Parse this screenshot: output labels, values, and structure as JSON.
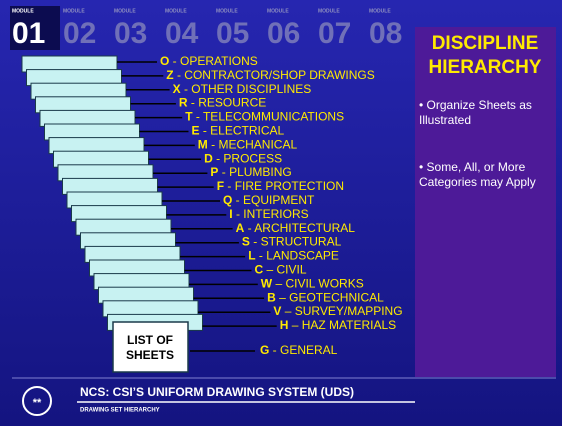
{
  "header": {
    "modules": [
      {
        "label": "MODULE",
        "number": "01"
      },
      {
        "label": "MODULE",
        "number": "02"
      },
      {
        "label": "MODULE",
        "number": "03"
      },
      {
        "label": "MODULE",
        "number": "04"
      },
      {
        "label": "MODULE",
        "number": "05"
      },
      {
        "label": "MODULE",
        "number": "06"
      },
      {
        "label": "MODULE",
        "number": "07"
      },
      {
        "label": "MODULE",
        "number": "08"
      }
    ]
  },
  "sidebar": {
    "title": "DISCIPLINE HIERARCHY",
    "bullets": [
      "• Organize Sheets as Illustrated",
      "• Some, All, or More Categories may Apply"
    ]
  },
  "hierarchy": {
    "base": "LIST OF SHEETS",
    "items": [
      {
        "letter": "O",
        "text": " - OPERATIONS"
      },
      {
        "letter": "Z",
        "text": " - CONTRACTOR/SHOP DRAWINGS"
      },
      {
        "letter": "X",
        "text": " - OTHER DISCIPLINES"
      },
      {
        "letter": "R",
        "text": " - RESOURCE"
      },
      {
        "letter": "T",
        "text": " - TELECOMMUNICATIONS"
      },
      {
        "letter": "E",
        "text": " - ELECTRICAL"
      },
      {
        "letter": "M",
        "text": " - MECHANICAL"
      },
      {
        "letter": "D",
        "text": " - PROCESS"
      },
      {
        "letter": "P",
        "text": " - PLUMBING"
      },
      {
        "letter": "F",
        "text": " - FIRE PROTECTION"
      },
      {
        "letter": "Q",
        "text": " - EQUIPMENT"
      },
      {
        "letter": "I",
        "text": " - INTERIORS"
      },
      {
        "letter": "A",
        "text": " - ARCHITECTURAL"
      },
      {
        "letter": "S",
        "text": " - STRUCTURAL"
      },
      {
        "letter": "L",
        "text": " - LANDSCAPE"
      },
      {
        "letter": "C",
        "text": " – CIVIL"
      },
      {
        "letter": "W",
        "text": " – CIVIL WORKS"
      },
      {
        "letter": "B",
        "text": " – GEOTECHNICAL"
      },
      {
        "letter": "V",
        "text": " – SURVEY/MAPPING"
      },
      {
        "letter": "H",
        "text": " – HAZ MATERIALS"
      },
      {
        "letter": "G",
        "text": " - GENERAL"
      }
    ]
  },
  "footer": {
    "icon": "**",
    "title": "NCS: CSI’S UNIFORM DRAWING SYSTEM (UDS)",
    "subtitle": "DRAWING SET HIERARCHY"
  }
}
